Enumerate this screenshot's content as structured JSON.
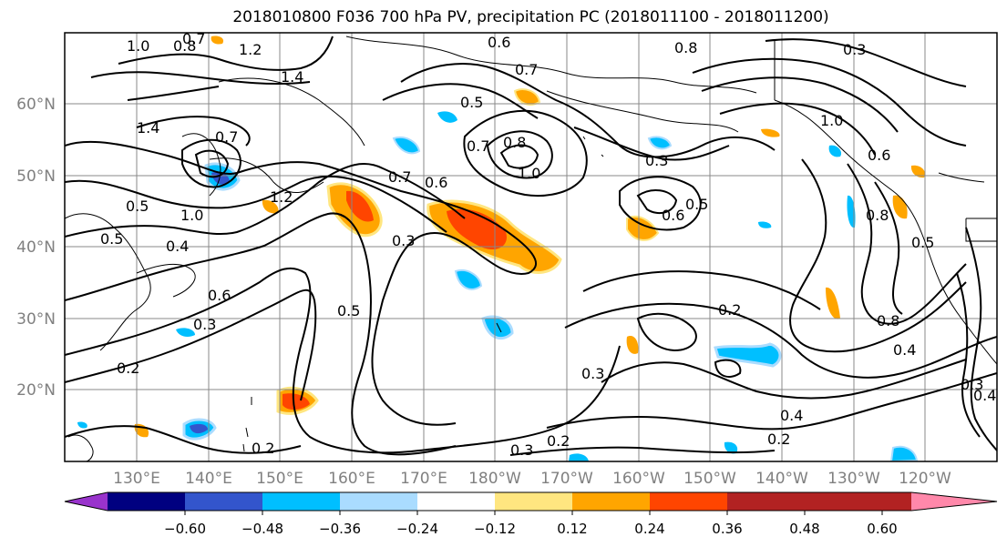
{
  "title": "2018010800 F036 700 hPa PV, precipitation PC (2018011100 - 2018011200)",
  "lat_labels": [
    "60°N",
    "50°N",
    "40°N",
    "30°N",
    "20°N"
  ],
  "lon_labels": [
    "130°E",
    "140°E",
    "150°E",
    "160°E",
    "170°E",
    "180°W",
    "170°W",
    "160°W",
    "150°W",
    "140°W",
    "130°W",
    "120°W"
  ],
  "contour_labels": [
    {
      "text": "1.0"
    },
    {
      "text": "0.8"
    },
    {
      "text": "0.7"
    },
    {
      "text": "1.2"
    },
    {
      "text": "1.4"
    },
    {
      "text": "1.4"
    },
    {
      "text": "0.7"
    },
    {
      "text": "1.0"
    },
    {
      "text": "0.5"
    },
    {
      "text": "0.5"
    },
    {
      "text": "1.2"
    },
    {
      "text": "0.7"
    },
    {
      "text": "0.6"
    },
    {
      "text": "0.3"
    },
    {
      "text": "0.4"
    },
    {
      "text": "0.6"
    },
    {
      "text": "0.3"
    },
    {
      "text": "0.2"
    },
    {
      "text": "0.5"
    },
    {
      "text": "0.6"
    },
    {
      "text": "0.7"
    },
    {
      "text": "0.5"
    },
    {
      "text": "0.7"
    },
    {
      "text": "0.8"
    },
    {
      "text": "1.0"
    },
    {
      "text": "0.3"
    },
    {
      "text": "0.6"
    },
    {
      "text": "0.5"
    },
    {
      "text": "0.8"
    },
    {
      "text": "0.3"
    },
    {
      "text": "1.0"
    },
    {
      "text": "0.2"
    },
    {
      "text": "0.3"
    },
    {
      "text": "0.4"
    },
    {
      "text": "0.2"
    },
    {
      "text": "0.3"
    },
    {
      "text": "0.2"
    },
    {
      "text": "0.2"
    },
    {
      "text": "0.8"
    },
    {
      "text": "0.4"
    },
    {
      "text": "0.3"
    },
    {
      "text": "0.4"
    },
    {
      "text": "0.5"
    },
    {
      "text": "0.8"
    },
    {
      "text": "0.6"
    }
  ],
  "colorbar": {
    "colors": [
      "#9933cc",
      "#000080",
      "#3355cc",
      "#00bfff",
      "#aadcff",
      "#ffffff",
      "#ffe680",
      "#ffa500",
      "#ff4500",
      "#b22222",
      "#ff88aa"
    ],
    "tick_labels": [
      "−0.60",
      "−0.48",
      "−0.36",
      "−0.24",
      "−0.12",
      "0.12",
      "0.24",
      "0.36",
      "0.48",
      "0.60"
    ]
  }
}
